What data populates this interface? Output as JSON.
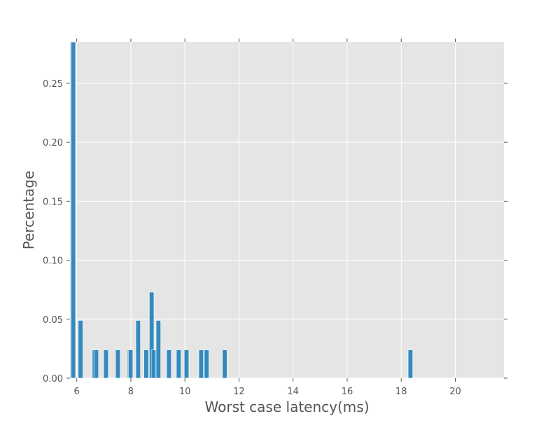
{
  "chart_data": {
    "type": "bar",
    "xlabel": "Worst case latency(ms)",
    "ylabel": "Percentage",
    "xlim": [
      5.75,
      21.8
    ],
    "ylim": [
      0,
      0.285
    ],
    "xticks": [
      6,
      8,
      10,
      12,
      14,
      16,
      18,
      20
    ],
    "xtick_labels": [
      "6",
      "8",
      "10",
      "12",
      "14",
      "16",
      "18",
      "20"
    ],
    "yticks": [
      0,
      0.05,
      0.1,
      0.15,
      0.2,
      0.25
    ],
    "ytick_labels": [
      "0.00",
      "0.05",
      "0.10",
      "0.15",
      "0.20",
      "0.25"
    ],
    "grid": true,
    "bar_width_data": 0.17,
    "bar_color": "#348abd",
    "plot_background": "#e5e5e5",
    "grid_color": "#ffffff",
    "bars": [
      {
        "x": 5.87,
        "y": 0.285
      },
      {
        "x": 6.14,
        "y": 0.049
      },
      {
        "x": 6.66,
        "y": 0.024
      },
      {
        "x": 6.72,
        "y": 0.024
      },
      {
        "x": 7.08,
        "y": 0.024
      },
      {
        "x": 7.52,
        "y": 0.024
      },
      {
        "x": 7.96,
        "y": 0.024
      },
      {
        "x": 7.99,
        "y": 0.024
      },
      {
        "x": 8.27,
        "y": 0.049
      },
      {
        "x": 8.57,
        "y": 0.024
      },
      {
        "x": 8.77,
        "y": 0.073
      },
      {
        "x": 8.84,
        "y": 0.024
      },
      {
        "x": 9.02,
        "y": 0.049
      },
      {
        "x": 9.41,
        "y": 0.024
      },
      {
        "x": 9.77,
        "y": 0.024
      },
      {
        "x": 10.06,
        "y": 0.024
      },
      {
        "x": 10.6,
        "y": 0.024
      },
      {
        "x": 10.8,
        "y": 0.024
      },
      {
        "x": 11.47,
        "y": 0.024
      },
      {
        "x": 18.34,
        "y": 0.024
      }
    ]
  }
}
